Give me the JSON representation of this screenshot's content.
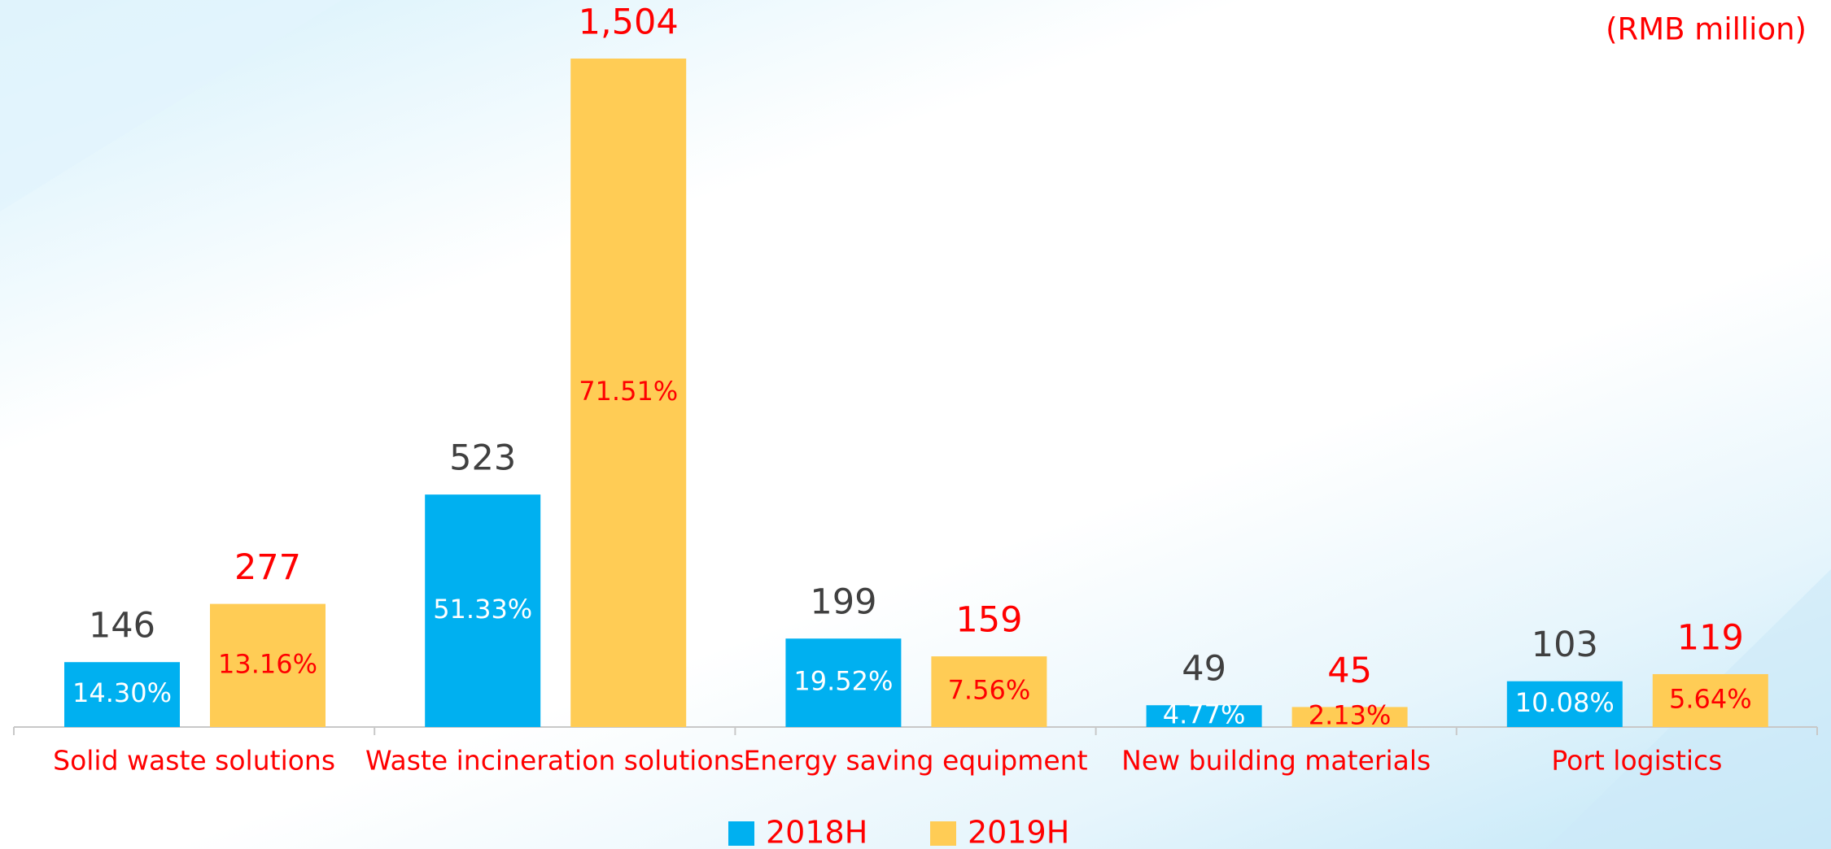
{
  "chart_data": {
    "type": "bar",
    "unit_label": "(RMB million)",
    "categories": [
      "Solid waste solutions",
      "Waste incineration solutions",
      "Energy saving equipment",
      "New building materials",
      "Port logistics"
    ],
    "series": [
      {
        "name": "2018H",
        "color": "#00b0f0",
        "label_color": "#404040",
        "share_color": "#ffffff",
        "values": [
          146,
          523,
          199,
          49,
          103
        ],
        "value_labels": [
          "146",
          "523",
          "199",
          "49",
          "103"
        ],
        "share_labels": [
          "14.30%",
          "51.33%",
          "19.52%",
          "4.77%",
          "10.08%"
        ]
      },
      {
        "name": "2019H",
        "color": "#ffcc55",
        "label_color": "#ff0000",
        "share_color": "#ff0000",
        "values": [
          277,
          1504,
          159,
          45,
          119
        ],
        "value_labels": [
          "277",
          "1,504",
          "159",
          "45",
          "119"
        ],
        "share_labels": [
          "13.16%",
          "71.51%",
          "7.56%",
          "2.13%",
          "5.64%"
        ]
      }
    ]
  }
}
